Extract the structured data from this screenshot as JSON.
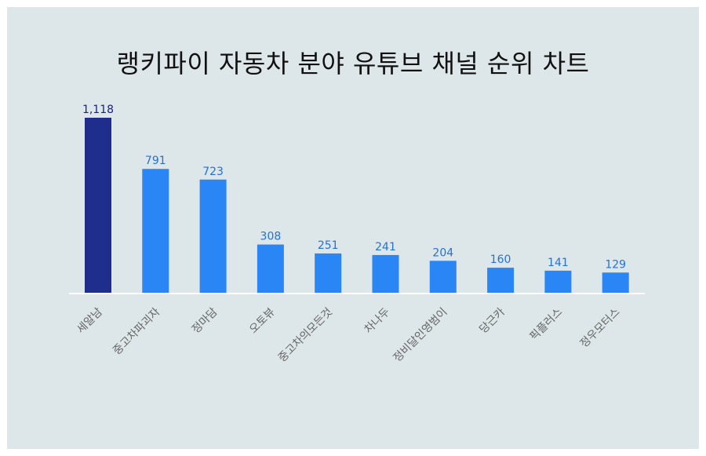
{
  "chart_data": {
    "type": "bar",
    "title": "랭키파이 자동차 분야 유튜브 채널 순위 차트",
    "categories": [
      "세알남",
      "중고차파괴자",
      "정마담",
      "오토뷰",
      "중고차의모든것",
      "차나두",
      "정비달인영범이",
      "당근카",
      "픽플러스",
      "정우모터스"
    ],
    "values": [
      1118,
      791,
      723,
      308,
      251,
      241,
      204,
      160,
      141,
      129
    ],
    "value_labels": [
      "1,118",
      "791",
      "723",
      "308",
      "251",
      "241",
      "204",
      "160",
      "141",
      "129"
    ],
    "ylim": [
      0,
      1118
    ],
    "grid": false,
    "legend": "none",
    "colors": {
      "highlight_bar": "#1f2d8c",
      "bar": "#2b86f5",
      "highlight_label": "#1a237e",
      "label": "#2472d4",
      "axis": "#ffffff",
      "background": "#dde6e8"
    }
  }
}
